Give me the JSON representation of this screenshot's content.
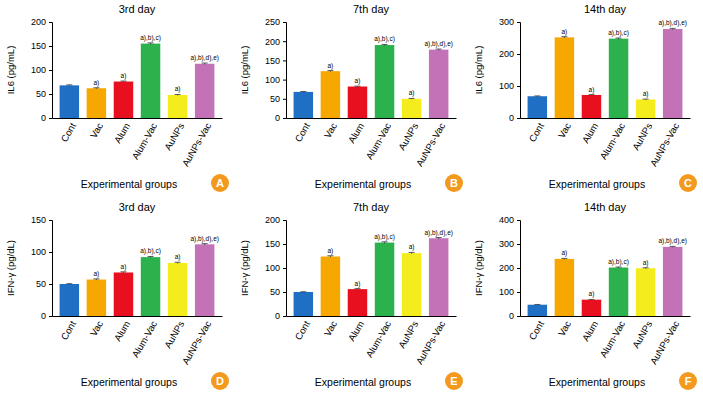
{
  "chart_data": [
    {
      "type": "bar",
      "title": "3rd day",
      "panel_label": "A",
      "x_label": "Experimental groups",
      "y_label": "IL6 (pg/mL)",
      "categories": [
        "Cont",
        "Vac",
        "Alum",
        "Alum-Vac",
        "AuNPs",
        "AuNPs-Vac"
      ],
      "values": [
        68,
        62,
        76,
        155,
        48,
        113
      ],
      "errors": [
        1,
        1,
        1,
        1.5,
        1,
        1.5
      ],
      "annotations": [
        null,
        "a)",
        "a)",
        "a),b),c)",
        "a)",
        "a),b),d),e)"
      ],
      "colors": [
        "#1f6fc4",
        "#f6a800",
        "#e8101e",
        "#2bb24c",
        "#f4ec1c",
        "#c472b8"
      ],
      "ylim": [
        0,
        200
      ],
      "yticks": [
        0,
        50,
        100,
        150,
        200
      ]
    },
    {
      "type": "bar",
      "title": "7th day",
      "panel_label": "B",
      "x_label": "Experimental groups",
      "y_label": "IL6 (pg/mL)",
      "categories": [
        "Cont",
        "Vac",
        "Alum",
        "Alum-Vac",
        "AuNPs",
        "AuNPs-Vac"
      ],
      "values": [
        68,
        122,
        82,
        190,
        50,
        178
      ],
      "errors": [
        1,
        1.5,
        1,
        1.5,
        1,
        1.5
      ],
      "annotations": [
        null,
        "a)",
        "a)",
        "a),b),c)",
        "a)",
        "a),b),d),e)"
      ],
      "colors": [
        "#1f6fc4",
        "#f6a800",
        "#e8101e",
        "#2bb24c",
        "#f4ec1c",
        "#c472b8"
      ],
      "ylim": [
        0,
        250
      ],
      "yticks": [
        0,
        50,
        100,
        150,
        200,
        250
      ]
    },
    {
      "type": "bar",
      "title": "14th day",
      "panel_label": "C",
      "x_label": "Experimental groups",
      "y_label": "IL6 (pg/mL)",
      "categories": [
        "Cont",
        "Vac",
        "Alum",
        "Alum-Vac",
        "AuNPs",
        "AuNPs-Vac"
      ],
      "values": [
        68,
        252,
        72,
        248,
        58,
        278
      ],
      "errors": [
        1,
        2,
        1,
        2,
        1,
        2
      ],
      "annotations": [
        null,
        "a)",
        "a)",
        "a),b),c)",
        "a)",
        "a),b),d),e)"
      ],
      "colors": [
        "#1f6fc4",
        "#f6a800",
        "#e8101e",
        "#2bb24c",
        "#f4ec1c",
        "#c472b8"
      ],
      "ylim": [
        0,
        300
      ],
      "yticks": [
        0,
        100,
        200,
        300
      ]
    },
    {
      "type": "bar",
      "title": "3rd day",
      "panel_label": "D",
      "x_label": "Experimental groups",
      "y_label": "IFN-γ (pg/dL)",
      "categories": [
        "Cont",
        "Vac",
        "Alum",
        "Alum-Vac",
        "AuNPs",
        "AuNPs-Vac"
      ],
      "values": [
        50,
        57,
        68,
        92,
        83,
        112
      ],
      "errors": [
        0.5,
        1,
        1,
        1,
        1,
        1
      ],
      "annotations": [
        null,
        "a)",
        "a)",
        "a),b),c)",
        "a)",
        "a),b),d),e)"
      ],
      "colors": [
        "#1f6fc4",
        "#f6a800",
        "#e8101e",
        "#2bb24c",
        "#f4ec1c",
        "#c472b8"
      ],
      "ylim": [
        0,
        150
      ],
      "yticks": [
        0,
        50,
        100,
        150
      ]
    },
    {
      "type": "bar",
      "title": "7th day",
      "panel_label": "E",
      "x_label": "Experimental groups",
      "y_label": "IFN-γ (pg/dL)",
      "categories": [
        "Cont",
        "Vac",
        "Alum",
        "Alum-Vac",
        "AuNPs",
        "AuNPs-Vac"
      ],
      "values": [
        50,
        124,
        56,
        153,
        131,
        162
      ],
      "errors": [
        0.5,
        1.5,
        1,
        1.5,
        1.5,
        1.5
      ],
      "annotations": [
        null,
        "a)",
        "a)",
        "a),b),c)",
        "a)",
        "a),b),d),e)"
      ],
      "colors": [
        "#1f6fc4",
        "#f6a800",
        "#e8101e",
        "#2bb24c",
        "#f4ec1c",
        "#c472b8"
      ],
      "ylim": [
        0,
        200
      ],
      "yticks": [
        0,
        50,
        100,
        150,
        200
      ]
    },
    {
      "type": "bar",
      "title": "14th day",
      "panel_label": "F",
      "x_label": "Experimental groups",
      "y_label": "IFN-γ (pg/dL)",
      "categories": [
        "Cont",
        "Vac",
        "Alum",
        "Alum-Vac",
        "AuNPs",
        "AuNPs-Vac"
      ],
      "values": [
        47,
        238,
        68,
        202,
        199,
        288
      ],
      "errors": [
        1,
        2,
        1,
        2,
        2,
        2
      ],
      "annotations": [
        null,
        "a)",
        "a)",
        "a),b),c)",
        "a)",
        "a),b),d),e)"
      ],
      "colors": [
        "#1f6fc4",
        "#f6a800",
        "#e8101e",
        "#2bb24c",
        "#f4ec1c",
        "#c472b8"
      ],
      "ylim": [
        0,
        400
      ],
      "yticks": [
        0,
        100,
        200,
        300,
        400
      ]
    }
  ]
}
